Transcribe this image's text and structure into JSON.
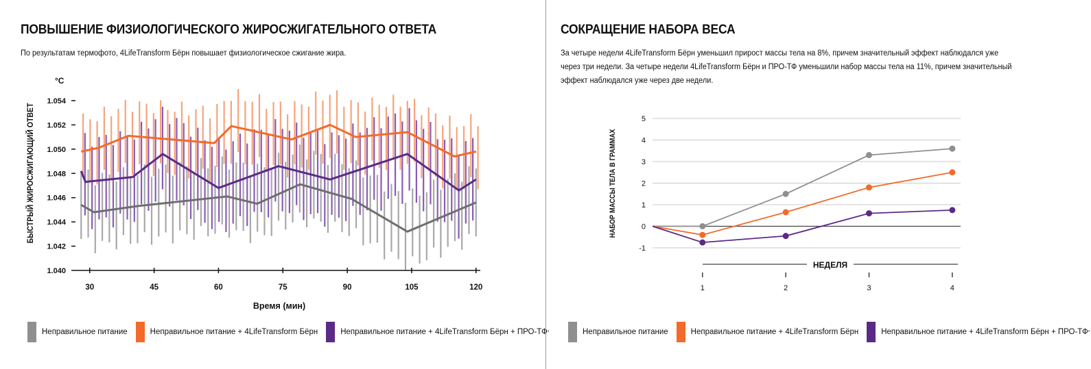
{
  "left_panel": {
    "title": "ПОВЫШЕНИЕ ФИЗИОЛОГИЧЕСКОГО ЖИРОСЖИГАТЕЛЬНОГО ОТВЕТА",
    "subtitle": "По результатам термофото, 4LifeTransform Бёрн повышает физиологическое сжигание жира.",
    "unit": "°C",
    "legend": [
      {
        "label": "Неправильное питание",
        "color": "#8f8f8f"
      },
      {
        "label": "Неправильное питание + 4LifeTransform Бёрн",
        "color": "#f26b2a"
      },
      {
        "label": "Неправильное питание + 4LifeTransform Бёрн + ПРО-ТФ",
        "sup": "*",
        "color": "#5b2a86"
      }
    ]
  },
  "right_panel": {
    "title": "СОКРАЩЕНИЕ НАБОРА ВЕСА",
    "subtitle_lines": [
      "За четыре недели 4LifeTransform Бёрн уменьшил прирост массы тела на 8%, причем значительный эффект наблюдался уже",
      "через три недели. За четыре недели 4LifeTransform Бёрн и ПРО-ТФ уменьшили набор массы тела на 11%, причем значительный",
      "эффект наблюдался уже через две недели."
    ],
    "legend": [
      {
        "label": "Неправильное питание",
        "color": "#8f8f8f"
      },
      {
        "label": "Неправильное питание + 4LifeTransform Бёрн",
        "color": "#f26b2a"
      },
      {
        "label": "Неправильное питание + 4LifeTransform Бёрн + ПРО-ТФ",
        "sup": "*",
        "color": "#5b2a86"
      }
    ]
  },
  "chart_data": [
    {
      "type": "line",
      "xlabel": "Время (мин)",
      "ylabel": "БЫСТРЫЙ ЖИРОСЖИГАЮЩИЙ ОТВЕТ",
      "xlim": [
        27,
        121
      ],
      "ylim": [
        1.04,
        1.054
      ],
      "x_ticks": [
        30,
        45,
        60,
        75,
        90,
        105,
        120
      ],
      "y_ticks": [
        "1.040",
        "1.042",
        "1.044",
        "1.046",
        "1.048",
        "1.050",
        "1.052",
        "1.054"
      ],
      "grid": false,
      "error_bars": true,
      "series": [
        {
          "name": "Неправильное питание",
          "color": "#6e6e6e",
          "band_color": "#a8a8a8",
          "x": [
            28,
            31,
            41,
            62,
            69,
            79,
            91,
            104,
            120
          ],
          "y": [
            1.0454,
            1.0448,
            1.0453,
            1.0461,
            1.0455,
            1.0471,
            1.0459,
            1.0432,
            1.0456
          ],
          "err": 0.0028
        },
        {
          "name": "Неправильное питание + 4LifeTransform Бёрн",
          "color": "#f26b2a",
          "band_color": "#f6a47a",
          "x": [
            28,
            32,
            39,
            59,
            63,
            77,
            86,
            92,
            104,
            115,
            120
          ],
          "y": [
            1.0498,
            1.0501,
            1.0511,
            1.0505,
            1.0519,
            1.0508,
            1.052,
            1.051,
            1.0514,
            1.0494,
            1.0498
          ],
          "err": 0.0026
        },
        {
          "name": "Неправильное питание + 4LifeTransform Бёрн + ПРО-ТФ",
          "color": "#5b2a86",
          "band_color": "#8a5bb5",
          "x": [
            28,
            29,
            40,
            47,
            60,
            74,
            86,
            104,
            116,
            120
          ],
          "y": [
            1.0482,
            1.0473,
            1.0477,
            1.0496,
            1.0468,
            1.0486,
            1.0475,
            1.0496,
            1.0466,
            1.0475
          ],
          "err": 0.0034
        }
      ]
    },
    {
      "type": "line",
      "xlabel": "НЕДЕЛЯ",
      "ylabel": "НАБОР МАССЫ ТЕЛА В ГРАММАХ",
      "x_ticks": [
        1,
        2,
        3,
        4
      ],
      "y_ticks": [
        -1,
        0,
        1,
        2,
        3,
        4,
        5
      ],
      "xlim": [
        0.4,
        4.1
      ],
      "ylim": [
        -1,
        5
      ],
      "grid": true,
      "series": [
        {
          "name": "Неправильное питание",
          "color": "#8f8f8f",
          "x": [
            0.4,
            1,
            2,
            3,
            4
          ],
          "y": [
            0,
            0,
            1.5,
            3.3,
            3.6
          ]
        },
        {
          "name": "Неправильное питание + 4LifeTransform Бёрн",
          "color": "#f26b2a",
          "x": [
            0.4,
            1,
            2,
            3,
            4
          ],
          "y": [
            0,
            -0.4,
            0.65,
            1.8,
            2.5
          ]
        },
        {
          "name": "Неправильное питание + 4LifeTransform Бёрн + ПРО-ТФ",
          "color": "#5b2a86",
          "x": [
            0.4,
            1,
            2,
            3,
            4
          ],
          "y": [
            0,
            -0.75,
            -0.45,
            0.6,
            0.75
          ]
        }
      ]
    }
  ]
}
